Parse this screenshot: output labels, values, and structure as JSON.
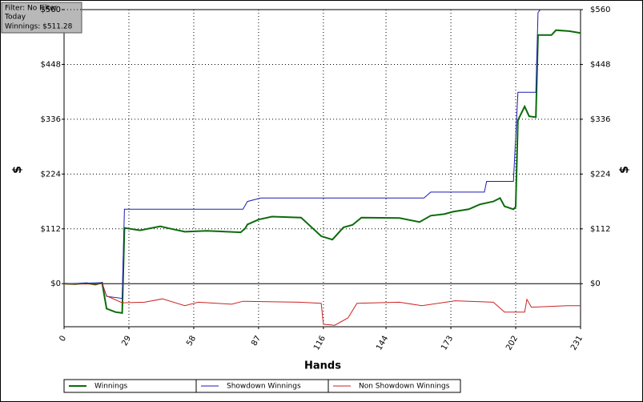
{
  "info": {
    "filter": "Filter: No Filter",
    "period": "Today",
    "winnings": "Winnings: $511.28"
  },
  "chart_data": {
    "type": "line",
    "xlabel": "Hands",
    "ylabel": "$",
    "y2label": "$",
    "xlim": [
      0,
      231
    ],
    "xticks": [
      0,
      29,
      58,
      87,
      116,
      144,
      173,
      202,
      231
    ],
    "ylim": [
      -88,
      560
    ],
    "yticks": [
      {
        "value": 0,
        "label": "$0"
      },
      {
        "value": 112,
        "label": "$112"
      },
      {
        "value": 224,
        "label": "$224"
      },
      {
        "value": 336,
        "label": "$336"
      },
      {
        "value": 448,
        "label": "$448"
      },
      {
        "value": 560,
        "label": "$560"
      }
    ],
    "grid": true,
    "series": [
      {
        "name": "Winnings",
        "color": "#0b6b0b",
        "x": [
          0,
          5,
          10,
          14,
          17,
          19,
          23,
          26,
          27,
          34,
          43,
          47,
          54,
          64,
          79,
          81,
          82,
          87,
          93,
          106,
          115,
          120,
          125,
          129,
          133,
          150,
          159,
          164,
          170,
          174,
          181,
          186,
          192,
          195,
          197,
          201,
          202,
          203,
          206,
          208,
          211,
          212,
          218,
          220,
          226,
          231
        ],
        "values": [
          0,
          -1,
          1,
          -2,
          2,
          -51,
          -58,
          -60,
          114,
          109,
          117,
          113,
          106,
          108,
          105,
          113,
          121,
          131,
          137,
          135,
          97,
          90,
          115,
          120,
          135,
          134,
          126,
          139,
          142,
          147,
          152,
          162,
          168,
          175,
          158,
          152,
          157,
          334,
          362,
          342,
          340,
          508,
          508,
          518,
          516,
          512
        ]
      },
      {
        "name": "Showdown Winnings",
        "color": "#1c1cb4",
        "x": [
          0,
          10,
          17,
          19,
          26,
          27,
          80,
          82,
          88,
          161,
          164,
          188,
          189,
          201,
          203,
          211,
          212,
          213
        ],
        "values": [
          0,
          1,
          2,
          -26,
          -30,
          152,
          152,
          168,
          175,
          175,
          187,
          187,
          209,
          209,
          391,
          391,
          554,
          560
        ]
      },
      {
        "name": "Non Showdown Winnings",
        "color": "#cc2222",
        "x": [
          0,
          10,
          17,
          19,
          26,
          36,
          44,
          54,
          60,
          75,
          80,
          105,
          115,
          116,
          121,
          127,
          131,
          150,
          160,
          175,
          192,
          197,
          206,
          207,
          209,
          225,
          231
        ],
        "values": [
          0,
          -1,
          0,
          -25,
          -39,
          -38,
          -31,
          -45,
          -38,
          -42,
          -36,
          -38,
          -40,
          -83,
          -85,
          -70,
          -40,
          -38,
          -45,
          -35,
          -38,
          -58,
          -58,
          -32,
          -48,
          -45,
          -45
        ]
      }
    ]
  }
}
